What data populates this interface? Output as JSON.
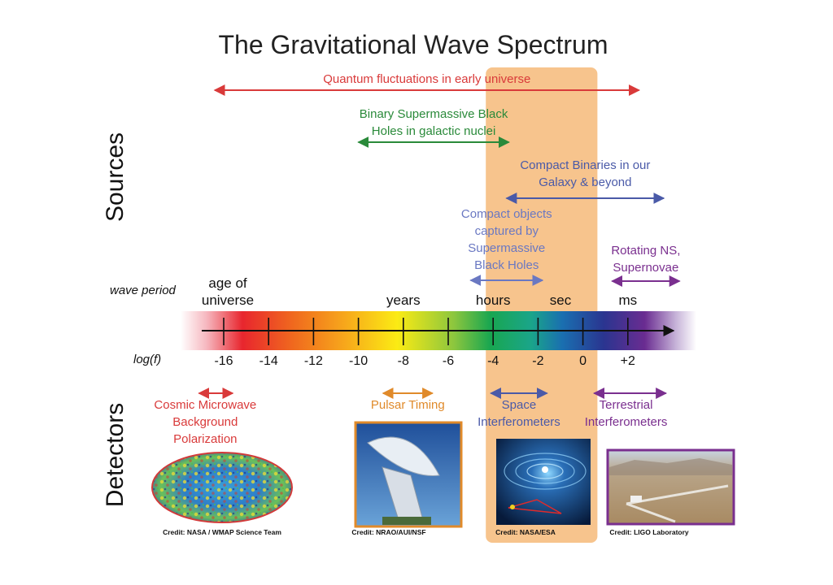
{
  "title": "The Gravitational Wave Spectrum",
  "side_labels": {
    "sources": "Sources",
    "detectors": "Detectors"
  },
  "axis": {
    "wave_period_label": "wave period",
    "log_f_label": "log(f)",
    "ticks": [
      "-16",
      "-14",
      "-12",
      "-10",
      "-8",
      "-6",
      "-4",
      "-2",
      "0",
      "+2"
    ],
    "tick_values": [
      -16,
      -14,
      -12,
      -10,
      -8,
      -6,
      -4,
      -2,
      0,
      2
    ],
    "range": [
      -17,
      3.8
    ],
    "periods": [
      {
        "lines": [
          "age of",
          "universe"
        ],
        "at": -16
      },
      {
        "lines": [
          "years"
        ],
        "at": -8
      },
      {
        "lines": [
          "hours"
        ],
        "at": -4
      },
      {
        "lines": [
          "sec"
        ],
        "at": -1
      },
      {
        "lines": [
          "ms"
        ],
        "at": 2
      }
    ]
  },
  "highlight_band": {
    "from": -4,
    "to": 0.5,
    "color": "#f7c48d"
  },
  "sources": [
    {
      "lines": [
        "Quantum fluctuations in early universe"
      ],
      "from": -16.4,
      "to": 2.5,
      "color": "#d93a3a"
    },
    {
      "lines": [
        "Binary Supermassive Black",
        "Holes in galactic nuclei"
      ],
      "from": -10.0,
      "to": -3.3,
      "color": "#2a8a3a"
    },
    {
      "lines": [
        "Compact Binaries in our",
        "Galaxy & beyond"
      ],
      "from": -3.4,
      "to": 3.6,
      "color": "#4a5aa8"
    },
    {
      "lines": [
        "Compact objects",
        "captured by",
        "Supermassive",
        "Black Holes"
      ],
      "from": -5.0,
      "to": -1.8,
      "color": "#6a78c2"
    },
    {
      "lines": [
        "Rotating NS,",
        "Supernovae"
      ],
      "from": 1.3,
      "to": 4.3,
      "color": "#7a2f8f"
    }
  ],
  "detectors": [
    {
      "name": "cmb",
      "lines": [
        "Cosmic Microwave",
        "Background",
        "Polarization"
      ],
      "from": -17.1,
      "to": -15.6,
      "color": "#d93a3a",
      "credit": "Credit: NASA / WMAP Science Team",
      "image": "sky-map-icon"
    },
    {
      "name": "pulsar",
      "lines": [
        "Pulsar Timing"
      ],
      "from": -8.9,
      "to": -6.7,
      "color": "#e08a2a",
      "credit": "Credit: NRAO/AUI/NSF",
      "image": "radio-dish-icon"
    },
    {
      "name": "space",
      "lines": [
        "Space",
        "Interferometers"
      ],
      "from": -4.1,
      "to": -1.6,
      "color": "#4a5aa8",
      "credit": "Credit: NASA/ESA",
      "image": "spacetime-spiral-icon"
    },
    {
      "name": "terrestrial",
      "lines": [
        "Terrestrial",
        "Interferometers"
      ],
      "from": 0.5,
      "to": 3.7,
      "color": "#7a2f8f",
      "credit": "Credit: LIGO Laboratory",
      "image": "ligo-site-icon"
    }
  ]
}
